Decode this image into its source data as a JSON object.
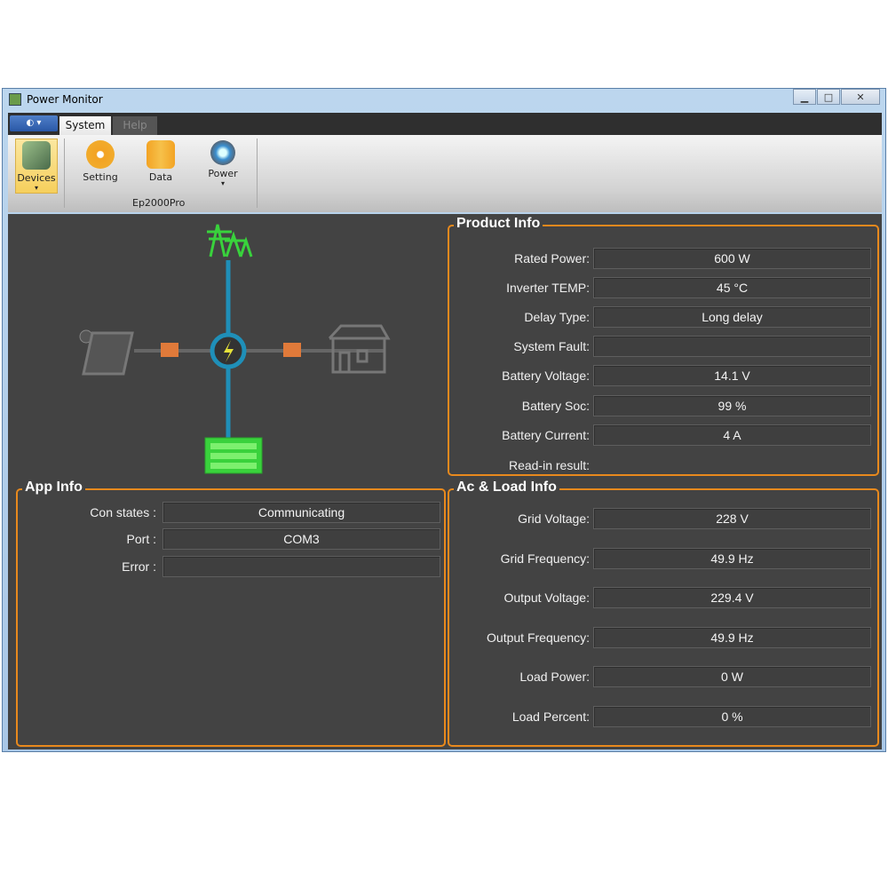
{
  "window": {
    "title": "Power Monitor",
    "minimize": "▁",
    "maximize": "□",
    "close": "✕"
  },
  "tabs": [
    {
      "label": "System",
      "active": true
    },
    {
      "label": "Help",
      "active": false
    }
  ],
  "app_menu": "◐ ▾",
  "ribbon": {
    "buttons": [
      {
        "label": "Devices",
        "icon": "devices-icon",
        "dropdown": "▾"
      },
      {
        "label": "Setting",
        "icon": "gear-icon"
      },
      {
        "label": "Data",
        "icon": "folder-icon"
      },
      {
        "label": "Power",
        "icon": "power-icon",
        "dropdown": "▾"
      }
    ],
    "group_label": "Ep2000Pro"
  },
  "diagram": {
    "nodes": [
      "grid-tower",
      "solar-panel",
      "inverter",
      "house",
      "battery"
    ],
    "line_color": "#1f8fb8",
    "grid_color": "#39d23c"
  },
  "product_info": {
    "title": "Product Info",
    "rows": [
      {
        "label": "Rated Power:",
        "value": "600 W"
      },
      {
        "label": "Inverter TEMP:",
        "value": "45 °C"
      },
      {
        "label": "Delay Type:",
        "value": "Long delay"
      },
      {
        "label": "System Fault:",
        "value": ""
      },
      {
        "label": "Battery Voltage:",
        "value": "14.1 V"
      },
      {
        "label": "Battery Soc:",
        "value": "99 %"
      },
      {
        "label": "Battery Current:",
        "value": "4 A"
      },
      {
        "label": "Read-in result:",
        "value": null
      }
    ]
  },
  "app_info": {
    "title": "App Info",
    "rows": [
      {
        "label": "Con states :",
        "value": "Communicating"
      },
      {
        "label": "Port :",
        "value": "COM3"
      },
      {
        "label": "Error :",
        "value": ""
      }
    ]
  },
  "ac_load_info": {
    "title": "Ac & Load Info",
    "rows": [
      {
        "label": "Grid Voltage:",
        "value": "228 V"
      },
      {
        "label": "Grid Frequency:",
        "value": "49.9 Hz"
      },
      {
        "label": "Output Voltage:",
        "value": "229.4 V"
      },
      {
        "label": "Output Frequency:",
        "value": "49.9 Hz"
      },
      {
        "label": "Load Power:",
        "value": "0 W"
      },
      {
        "label": "Load Percent:",
        "value": "0 %"
      }
    ]
  }
}
